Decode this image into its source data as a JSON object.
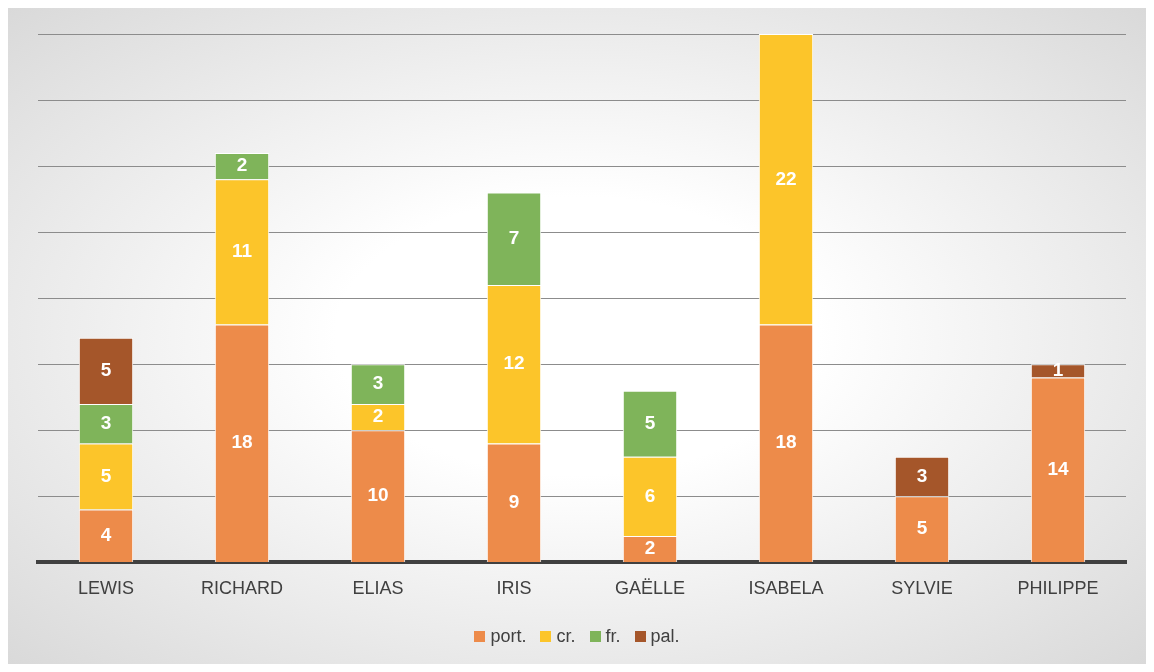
{
  "chart_data": {
    "type": "bar",
    "stacked": true,
    "categories": [
      "LEWIS",
      "RICHARD",
      "ELIAS",
      "IRIS",
      "GAËLLE",
      "ISABELA",
      "SYLVIE",
      "PHILIPPE"
    ],
    "series": [
      {
        "name": "port.",
        "color": "#ed8b4a",
        "values": [
          4,
          18,
          10,
          9,
          2,
          18,
          5,
          14
        ]
      },
      {
        "name": "cr.",
        "color": "#fcc52a",
        "values": [
          5,
          11,
          2,
          12,
          6,
          22,
          null,
          null
        ]
      },
      {
        "name": "fr.",
        "color": "#7fb45a",
        "values": [
          3,
          2,
          3,
          7,
          5,
          null,
          null,
          null
        ]
      },
      {
        "name": "pal.",
        "color": "#a5562a",
        "values": [
          5,
          null,
          null,
          null,
          null,
          null,
          3,
          1
        ]
      }
    ],
    "data_labels": true,
    "tick_labels": "x",
    "grid": "y",
    "legend": "bottom"
  }
}
